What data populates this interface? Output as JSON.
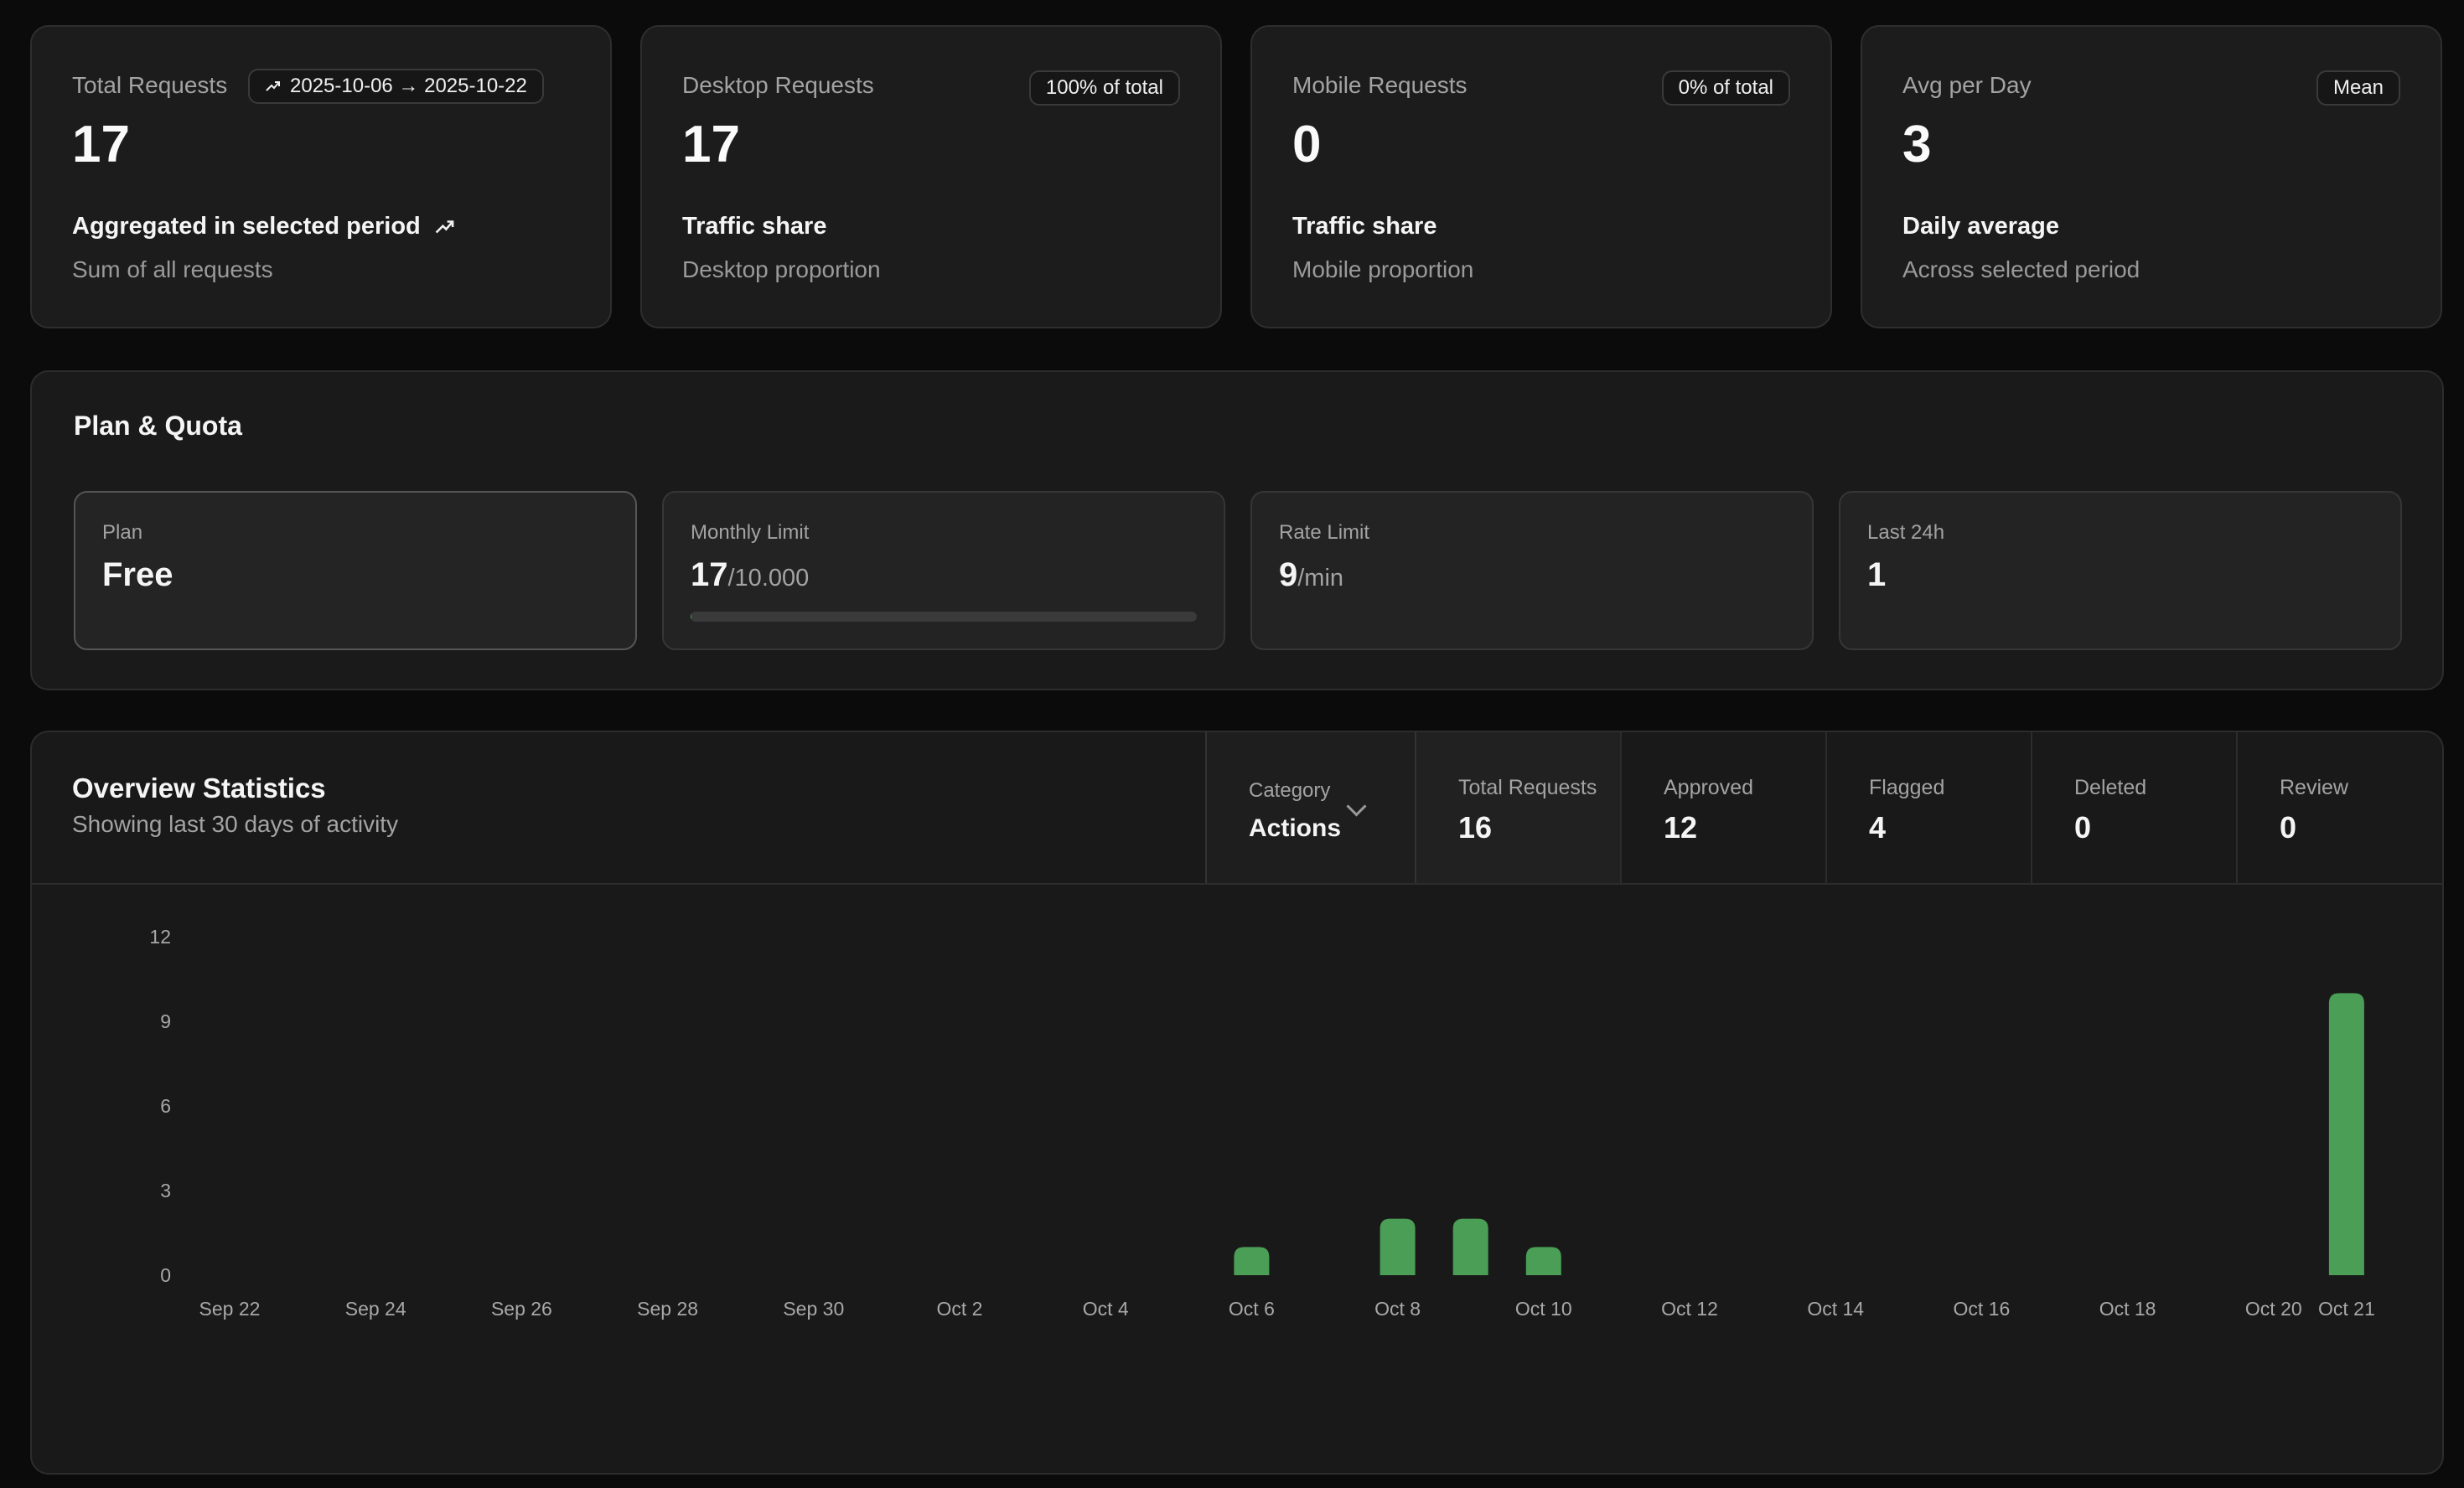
{
  "stats": [
    {
      "label": "Total Requests",
      "value": "17",
      "badge": "2025-10-06 → 2025-10-22",
      "foot_title": "Aggregated in selected period",
      "foot_sub": "Sum of all requests"
    },
    {
      "label": "Desktop Requests",
      "value": "17",
      "badge": "100% of total",
      "foot_title": "Traffic share",
      "foot_sub": "Desktop proportion"
    },
    {
      "label": "Mobile Requests",
      "value": "0",
      "badge": "0% of total",
      "foot_title": "Traffic share",
      "foot_sub": "Mobile proportion"
    },
    {
      "label": "Avg per Day",
      "value": "3",
      "badge": "Mean",
      "foot_title": "Daily average",
      "foot_sub": "Across selected period"
    }
  ],
  "plan": {
    "title": "Plan & Quota",
    "cards": [
      {
        "label": "Plan",
        "value": "Free",
        "unit": ""
      },
      {
        "label": "Monthly Limit",
        "value": "17",
        "unit": "/10.000",
        "progress": 0.0017
      },
      {
        "label": "Rate Limit",
        "value": "9",
        "unit": "/min"
      },
      {
        "label": "Last 24h",
        "value": "1",
        "unit": ""
      }
    ]
  },
  "overview": {
    "title": "Overview Statistics",
    "subtitle": "Showing last 30 days of activity",
    "category_label": "Category",
    "category_value": "Actions",
    "metrics": [
      {
        "label": "Total Requests",
        "value": "16"
      },
      {
        "label": "Approved",
        "value": "12"
      },
      {
        "label": "Flagged",
        "value": "4"
      },
      {
        "label": "Deleted",
        "value": "0"
      },
      {
        "label": "Review",
        "value": "0"
      }
    ]
  },
  "colors": {
    "accent": "#4a9e55",
    "background": "#0b0b0b",
    "card": "#1c1c1c"
  },
  "icons": {
    "trend": "trend-up-icon",
    "dropdown": "chevron-down-icon"
  },
  "chart_data": {
    "type": "bar",
    "categories": [
      "Sep 22",
      "Sep 23",
      "Sep 24",
      "Sep 25",
      "Sep 26",
      "Sep 27",
      "Sep 28",
      "Sep 29",
      "Sep 30",
      "Oct 1",
      "Oct 2",
      "Oct 3",
      "Oct 4",
      "Oct 5",
      "Oct 6",
      "Oct 7",
      "Oct 8",
      "Oct 9",
      "Oct 10",
      "Oct 11",
      "Oct 12",
      "Oct 13",
      "Oct 14",
      "Oct 15",
      "Oct 16",
      "Oct 17",
      "Oct 18",
      "Oct 19",
      "Oct 20",
      "Oct 21"
    ],
    "tick_labels": [
      "Sep 22",
      "Sep 24",
      "Sep 26",
      "Sep 28",
      "Sep 30",
      "Oct 2",
      "Oct 4",
      "Oct 6",
      "Oct 8",
      "Oct 10",
      "Oct 12",
      "Oct 14",
      "Oct 16",
      "Oct 18",
      "Oct 20",
      "Oct 21"
    ],
    "values": [
      0,
      0,
      0,
      0,
      0,
      0,
      0,
      0,
      0,
      0,
      0,
      0,
      0,
      0,
      1,
      0,
      2,
      2,
      1,
      0,
      0,
      0,
      0,
      0,
      0,
      0,
      0,
      0,
      0,
      10
    ],
    "yticks": [
      0,
      3,
      6,
      9,
      12
    ],
    "ylim": [
      0,
      12
    ],
    "grid": false,
    "color": "#4a9e55"
  }
}
